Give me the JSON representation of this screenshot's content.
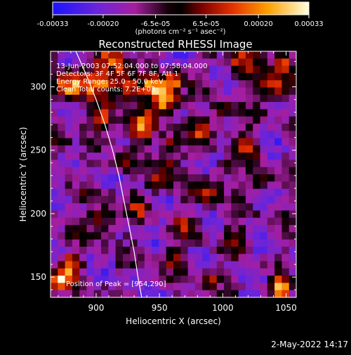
{
  "chart_data": {
    "type": "heatmap",
    "title": "Reconstructed RHESSI Image",
    "xlabel": "Heliocentric X (arcsec)",
    "ylabel": "Heliocentric Y (arcsec)",
    "xlim": [
      864,
      1058
    ],
    "ylim": [
      134,
      328
    ],
    "x_ticks": [
      900,
      950,
      1000,
      1050
    ],
    "y_ticks": [
      150,
      200,
      250,
      300
    ],
    "colorbar": {
      "ticks": [
        "-0.00033",
        "-0.00020",
        "-6.5e-05",
        "6.5e-05",
        "0.00020",
        "0.00033"
      ],
      "tick_values": [
        -0.00033,
        -0.0002,
        -6.5e-05,
        6.5e-05,
        0.0002,
        0.00033
      ],
      "unit_label": "(photons cm⁻² s⁻¹ asec⁻²)",
      "range": [
        -0.00033,
        0.00033
      ]
    },
    "annotations": {
      "line1": "13-Jun-2003 07:52:04.000 to 07:58:04.000",
      "line2": "Detectors: 3F 4F 5F 6F 7F 8F, Att 1",
      "line3": "Energy Range: 25.0 - 50.0 keV",
      "line4": "Clean    Total counts: 7.2E+03",
      "peak": "Position of Peak = [954,290]"
    },
    "limb_curve": [
      [
        884,
        328
      ],
      [
        892,
        310
      ],
      [
        900,
        290
      ],
      [
        907,
        270
      ],
      [
        913,
        250
      ],
      [
        918,
        230
      ],
      [
        922,
        210
      ],
      [
        926,
        190
      ],
      [
        930,
        170
      ],
      [
        933,
        150
      ],
      [
        936,
        134
      ]
    ],
    "peak": [
      954,
      290
    ],
    "grid": false
  },
  "footer": {
    "date": "2-May-2022 14:17"
  }
}
